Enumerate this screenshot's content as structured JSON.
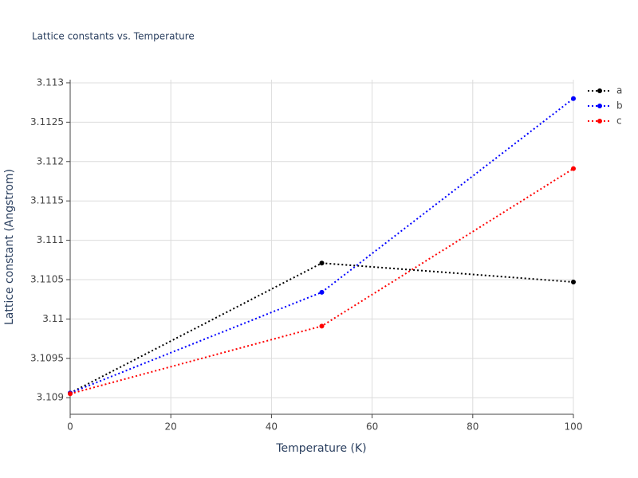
{
  "chart_data": {
    "type": "line",
    "title": "Lattice constants vs. Temperature",
    "x_label": "Temperature (K)",
    "y_label": "Lattice constant (Angstrom)",
    "x": [
      0,
      50,
      100
    ],
    "series": [
      {
        "name": "a",
        "color": "#000000",
        "values": [
          3.10906,
          3.11071,
          3.11047
        ]
      },
      {
        "name": "b",
        "color": "#0000ff",
        "values": [
          3.10906,
          3.11034,
          3.1128
        ]
      },
      {
        "name": "c",
        "color": "#ff0000",
        "values": [
          3.10905,
          3.10991,
          3.11191
        ]
      }
    ],
    "xlim": [
      0,
      100
    ],
    "xticks": [
      0,
      20,
      40,
      60,
      80,
      100
    ],
    "ylim": [
      3.10879,
      3.11304
    ],
    "yticks": [
      3.109,
      3.1095,
      3.11,
      3.1105,
      3.111,
      3.1115,
      3.112,
      3.1125,
      3.113
    ],
    "grid": true,
    "legend": "top-right"
  }
}
